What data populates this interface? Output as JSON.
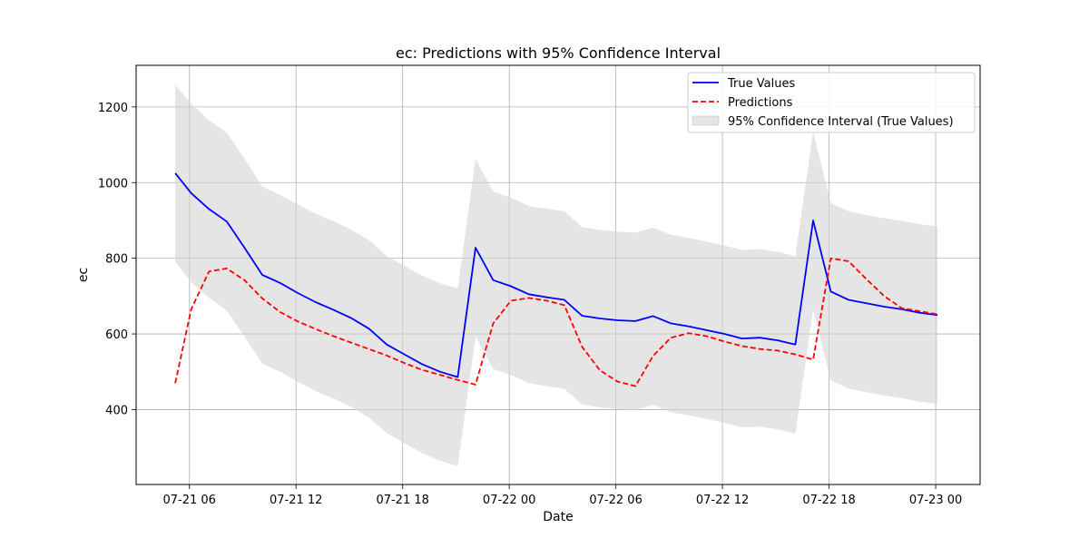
{
  "chart_data": {
    "type": "line",
    "title": "ec: Predictions with 95% Confidence Interval",
    "xlabel": "Date",
    "ylabel": "ec",
    "x_tick_labels": [
      "07-21 06",
      "07-21 12",
      "07-21 18",
      "07-22 00",
      "07-22 06",
      "07-22 12",
      "07-22 18",
      "07-23 00"
    ],
    "x_tick_hours": [
      6,
      12,
      18,
      24,
      30,
      36,
      42,
      48
    ],
    "x_range_hours": [
      3.0,
      50.5
    ],
    "y_ticks": [
      400,
      600,
      800,
      1000,
      1200
    ],
    "ylim": [
      202,
      1310
    ],
    "grid": true,
    "legend_position": "top-right",
    "x_hours": [
      5.2,
      6.1,
      7.1,
      8.1,
      9.1,
      10.1,
      11.1,
      12.1,
      13.1,
      14.1,
      15.1,
      16.1,
      17.1,
      18.1,
      19.1,
      20.1,
      21.1,
      22.1,
      23.1,
      24.1,
      25.1,
      26.1,
      27.1,
      28.1,
      29.1,
      30.1,
      31.1,
      32.1,
      33.1,
      34.1,
      35.1,
      36.1,
      37.1,
      38.1,
      39.1,
      40.1,
      41.1,
      42.1,
      43.1,
      44.1,
      45.1,
      46.1,
      47.1,
      48.1
    ],
    "series": [
      {
        "name": "True Values",
        "color": "#0000ff",
        "style": "solid",
        "values": [
          1025,
          972,
          930,
          897,
          828,
          756,
          735,
          708,
          684,
          664,
          642,
          614,
          572,
          546,
          520,
          500,
          486,
          828,
          742,
          726,
          705,
          697,
          690,
          648,
          641,
          636,
          634,
          647,
          628,
          620,
          610,
          600,
          588,
          590,
          583,
          572,
          900,
          712,
          690,
          681,
          672,
          665,
          656,
          650
        ]
      },
      {
        "name": "Predictions",
        "color": "#ff0000",
        "style": "dashed",
        "values": [
          470,
          665,
          765,
          773,
          742,
          694,
          658,
          633,
          613,
          594,
          577,
          560,
          543,
          523,
          505,
          492,
          478,
          466,
          628,
          688,
          695,
          688,
          676,
          566,
          504,
          474,
          462,
          542,
          590,
          602,
          594,
          580,
          568,
          560,
          556,
          546,
          532,
          800,
          792,
          745,
          700,
          668,
          660,
          652
        ]
      }
    ],
    "confidence_interval": {
      "name": "95% Confidence Interval (True Values)",
      "color": "#d3d3d3",
      "upper": [
        1258,
        1208,
        1165,
        1132,
        1063,
        990,
        968,
        942,
        918,
        898,
        876,
        848,
        806,
        780,
        754,
        734,
        720,
        1063,
        976,
        960,
        938,
        931,
        924,
        882,
        875,
        870,
        868,
        881,
        862,
        854,
        844,
        834,
        822,
        824,
        817,
        806,
        1134,
        946,
        924,
        914,
        906,
        899,
        890,
        884
      ],
      "lower": [
        791,
        736,
        695,
        662,
        593,
        521,
        500,
        474,
        449,
        429,
        407,
        379,
        338,
        311,
        285,
        265,
        251,
        592,
        507,
        491,
        470,
        462,
        455,
        413,
        406,
        401,
        399,
        412,
        393,
        385,
        375,
        365,
        353,
        355,
        348,
        337,
        665,
        477,
        455,
        446,
        437,
        430,
        421,
        415
      ]
    }
  }
}
